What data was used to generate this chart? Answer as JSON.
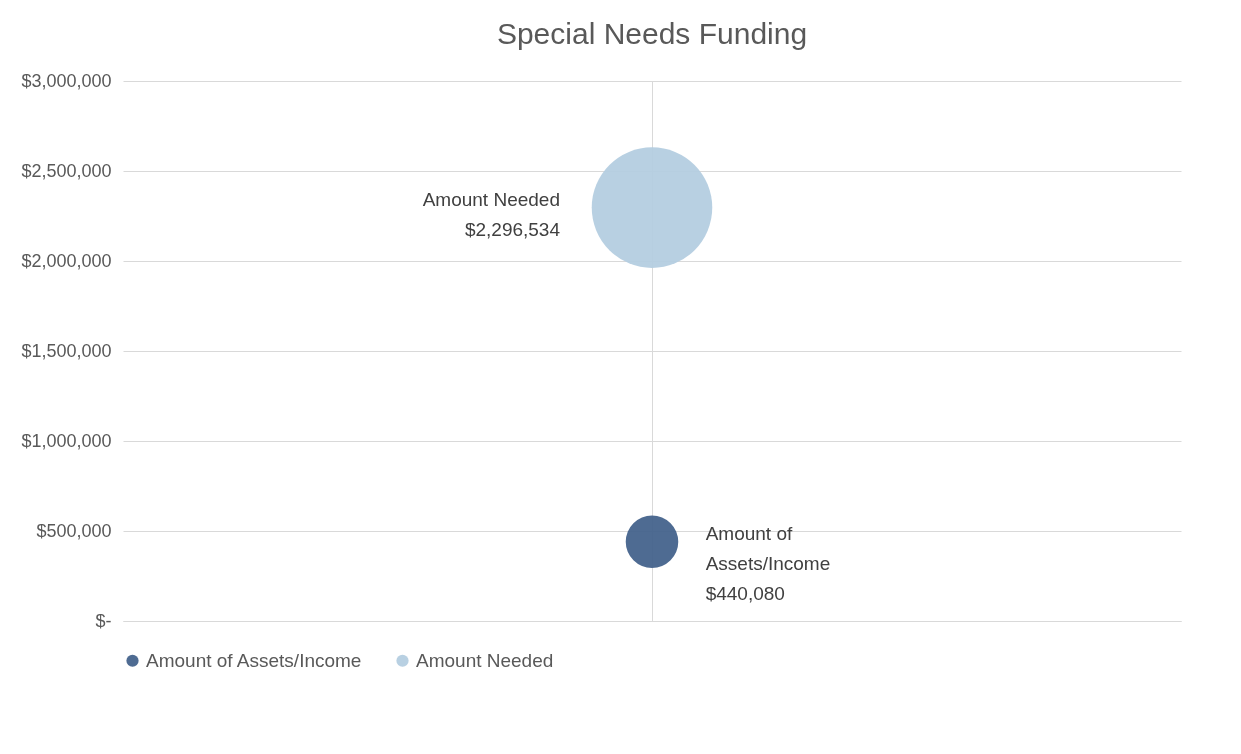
{
  "chart_data": {
    "type": "bubble",
    "title": "Special Needs Funding",
    "categories": [
      null
    ],
    "series": [
      {
        "name": "Amount of Assets/Income",
        "color": "#44638c",
        "values": [
          440080
        ],
        "sizes": [
          0.19
        ],
        "value_labels": [
          "$440,080"
        ]
      },
      {
        "name": "Amount Needed",
        "color": "#b4cde0",
        "values": [
          2296534
        ],
        "sizes": [
          1
        ],
        "value_labels": [
          "$2,296,534"
        ]
      }
    ],
    "ylim": [
      0,
      3000000
    ],
    "yticks": [
      {
        "value": 0,
        "label": "$-"
      },
      {
        "value": 500000,
        "label": "$500,000"
      },
      {
        "value": 1000000,
        "label": "$1,000,000"
      },
      {
        "value": 1500000,
        "label": "$1,500,000"
      },
      {
        "value": 2000000,
        "label": "$2,000,000"
      },
      {
        "value": 2500000,
        "label": "$2,500,000"
      },
      {
        "value": 3000000,
        "label": "$3,000,000"
      }
    ],
    "grid": true,
    "legend": "bottom",
    "tick_labels": "y"
  }
}
